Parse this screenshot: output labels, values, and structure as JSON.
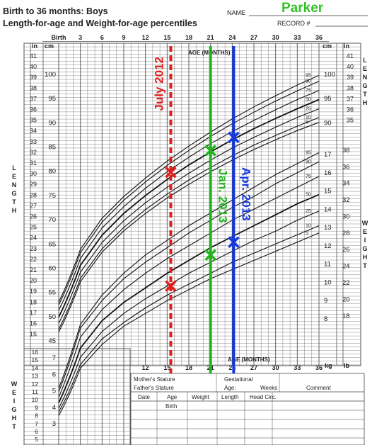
{
  "header": {
    "title_line1": "Birth to 36 months: Boys",
    "title_line2": "Length-for-age and Weight-for-age percentiles",
    "name_label": "NAME",
    "name_value": "Parker",
    "record_label": "RECORD #"
  },
  "colors": {
    "grid": "#555555",
    "curves": "#111111",
    "july_2012": "#e0201e",
    "jan_2013": "#22b41e",
    "apr_2013": "#1438e0",
    "name": "#33c12a"
  },
  "axis_top": {
    "ticks": [
      "Birth",
      "3",
      "6",
      "9",
      "12",
      "15",
      "18",
      "21",
      "24",
      "27",
      "30",
      "33",
      "36"
    ],
    "title": "AGE (MONTHS)"
  },
  "axis_bottom": {
    "ticks": [
      "12",
      "15",
      "18",
      "21",
      "24",
      "27",
      "30",
      "33",
      "36"
    ],
    "title": "AGE (MONTHS)"
  },
  "length_axis": {
    "label": "LENGTH",
    "inch_unit": "in",
    "cm_unit": "cm",
    "inches_left": [
      "41",
      "40",
      "39",
      "38",
      "37",
      "36",
      "35",
      "34",
      "33",
      "32",
      "31",
      "30",
      "29",
      "28",
      "27",
      "26",
      "25",
      "24",
      "23",
      "22",
      "21",
      "20",
      "19",
      "18",
      "17",
      "16",
      "15"
    ],
    "cm_left": [
      "100",
      "95",
      "90",
      "85",
      "80",
      "75",
      "70",
      "65",
      "60",
      "55",
      "50",
      "45"
    ],
    "inches_right": [
      "41",
      "40",
      "39",
      "38",
      "37",
      "36",
      "35"
    ],
    "cm_right": [
      "100",
      "95",
      "90"
    ]
  },
  "weight_axis": {
    "label": "WEIGHT",
    "lb_unit": "lb",
    "kg_unit": "kg",
    "kg_right": [
      "17",
      "16",
      "15",
      "14",
      "13",
      "12",
      "11",
      "10",
      "9",
      "8"
    ],
    "lb_right": [
      "38",
      "36",
      "34",
      "32",
      "30",
      "28",
      "26",
      "24",
      "22",
      "20",
      "18"
    ],
    "lb_left": [
      "16",
      "15",
      "14",
      "13",
      "12",
      "11",
      "10",
      "9",
      "8",
      "7",
      "6",
      "5",
      "4",
      "3"
    ],
    "kg_left": [
      "7",
      "6",
      "5",
      "4",
      "3"
    ]
  },
  "percentile_labels": [
    "95",
    "90",
    "75",
    "50",
    "25",
    "10",
    "5"
  ],
  "table": {
    "mothers_stature": "Mother's Stature",
    "fathers_stature": "Father's Stature",
    "gestational": "Gestational",
    "age": "Age:",
    "weeks": "Weeks",
    "comment": "Comment",
    "columns": [
      "Date",
      "Age",
      "Weight",
      "Length",
      "Head Circ."
    ],
    "birth": "Birth"
  },
  "annotations": [
    {
      "label": "July 2012",
      "age_months": 15.5,
      "color": "#e0201e"
    },
    {
      "label": "Jan. 2013",
      "age_months": 21.0,
      "color": "#22b41e"
    },
    {
      "label": "Apr. 2013",
      "age_months": 24.2,
      "color": "#1438e0"
    }
  ],
  "chart_data": {
    "type": "line",
    "title": "Length-for-age and Weight-for-age percentiles",
    "x_unit": "months",
    "xlim": [
      0,
      36
    ],
    "length_percentiles_cm": {
      "x": [
        0,
        3,
        6,
        9,
        12,
        15,
        18,
        21,
        24,
        27,
        30,
        33,
        36
      ],
      "series": [
        {
          "name": "95",
          "values": [
            53.0,
            63.9,
            70.3,
            74.8,
            78.6,
            82.1,
            85.2,
            88.1,
            90.8,
            93.3,
            95.6,
            97.8,
            99.8
          ]
        },
        {
          "name": "90",
          "values": [
            52.4,
            63.2,
            69.5,
            74.0,
            77.8,
            81.2,
            84.3,
            87.2,
            89.8,
            92.2,
            94.5,
            96.6,
            98.6
          ]
        },
        {
          "name": "75",
          "values": [
            51.3,
            62.0,
            68.3,
            72.7,
            76.5,
            79.9,
            82.9,
            85.7,
            88.2,
            90.5,
            92.7,
            94.8,
            96.7
          ]
        },
        {
          "name": "50",
          "values": [
            49.9,
            60.6,
            66.8,
            71.3,
            75.0,
            78.3,
            81.3,
            84.0,
            86.5,
            88.8,
            90.9,
            92.9,
            94.8
          ]
        },
        {
          "name": "25",
          "values": [
            48.6,
            59.2,
            65.3,
            69.8,
            73.5,
            76.7,
            79.6,
            82.3,
            84.8,
            87.0,
            89.1,
            91.1,
            92.9
          ]
        },
        {
          "name": "10",
          "values": [
            47.4,
            57.9,
            64.0,
            68.4,
            72.1,
            75.3,
            78.2,
            80.8,
            83.2,
            85.4,
            87.4,
            89.3,
            91.1
          ]
        },
        {
          "name": "5",
          "values": [
            46.8,
            57.2,
            63.3,
            67.7,
            71.3,
            74.5,
            77.3,
            79.9,
            82.3,
            84.5,
            86.5,
            88.4,
            90.1
          ]
        }
      ]
    },
    "weight_percentiles_kg": {
      "x": [
        0,
        3,
        6,
        9,
        12,
        15,
        18,
        21,
        24,
        27,
        30,
        33,
        36
      ],
      "series": [
        {
          "name": "95",
          "values": [
            4.2,
            7.7,
            9.3,
            10.5,
            11.5,
            12.3,
            13.1,
            13.8,
            14.5,
            15.2,
            15.9,
            16.5,
            17.1
          ]
        },
        {
          "name": "90",
          "values": [
            4.0,
            7.5,
            9.0,
            10.2,
            11.1,
            11.9,
            12.7,
            13.4,
            14.1,
            14.7,
            15.4,
            16.0,
            16.6
          ]
        },
        {
          "name": "75",
          "values": [
            3.7,
            7.0,
            8.5,
            9.6,
            10.5,
            11.3,
            12.0,
            12.7,
            13.4,
            14.0,
            14.6,
            15.2,
            15.8
          ]
        },
        {
          "name": "50",
          "values": [
            3.4,
            6.4,
            7.9,
            8.9,
            9.7,
            10.5,
            11.2,
            11.9,
            12.5,
            13.1,
            13.7,
            14.3,
            14.8
          ]
        },
        {
          "name": "25",
          "values": [
            3.1,
            5.9,
            7.3,
            8.3,
            9.1,
            9.8,
            10.5,
            11.1,
            11.7,
            12.3,
            12.8,
            13.4,
            13.9
          ]
        },
        {
          "name": "10",
          "values": [
            2.9,
            5.5,
            6.9,
            7.8,
            8.6,
            9.3,
            9.9,
            10.5,
            11.1,
            11.6,
            12.1,
            12.6,
            13.1
          ]
        },
        {
          "name": "5",
          "values": [
            2.7,
            5.3,
            6.6,
            7.6,
            8.3,
            9.0,
            9.6,
            10.2,
            10.7,
            11.2,
            11.7,
            12.2,
            12.7
          ]
        }
      ]
    },
    "measurements": [
      {
        "date": "July 2012",
        "age_months": 15.5,
        "length_cm": 79.8,
        "weight_kg": 9.8
      },
      {
        "date": "Jan. 2013",
        "age_months": 21.0,
        "length_cm": 84.3,
        "weight_kg": 11.5
      },
      {
        "date": "Apr. 2013",
        "age_months": 24.2,
        "length_cm": 87.0,
        "weight_kg": 12.2
      }
    ]
  }
}
